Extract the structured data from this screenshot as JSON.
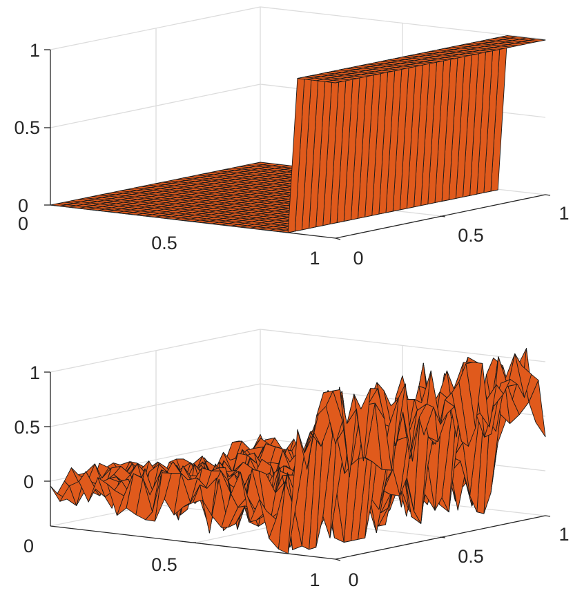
{
  "chart_data": [
    {
      "type": "surface",
      "surface_color": "#e05a1c",
      "edge_color": "#1a1a1a",
      "grid": true,
      "x_ticks": [
        "0",
        "0.5",
        "1"
      ],
      "y_ticks": [
        "0",
        "0.5",
        "1"
      ],
      "z_ticks": [
        "0",
        "0.5",
        "1"
      ],
      "xlim": [
        0,
        1
      ],
      "ylim": [
        0,
        1
      ],
      "zlim": [
        0,
        1
      ],
      "surface": "step: z = 1 where x > 0.86, else z = 0"
    },
    {
      "type": "surface",
      "surface_color": "#e05a1c",
      "edge_color": "#1a1a1a",
      "grid": true,
      "x_ticks": [
        "0",
        "0.5",
        "1"
      ],
      "y_ticks": [
        "0",
        "0.5",
        "1"
      ],
      "z_ticks": [
        "0",
        "0.5",
        "1"
      ],
      "xlim": [
        0,
        1
      ],
      "ylim": [
        0,
        1
      ],
      "zlim": [
        -0.3,
        1
      ],
      "surface": "noisy approximation of step, values roughly -0.3 to 1.1, noise increasing with x"
    }
  ]
}
